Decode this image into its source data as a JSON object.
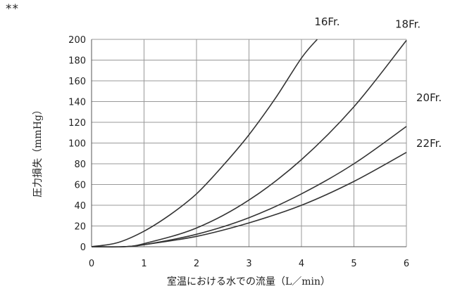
{
  "page": {
    "marker": "**"
  },
  "chart_data": {
    "type": "line",
    "title": "",
    "xlabel": "室温における水での流量（L／min）",
    "ylabel": "圧力損失（mmHg）",
    "xlim": [
      0,
      6
    ],
    "ylim": [
      0,
      200
    ],
    "x_ticks": [
      "0",
      "1",
      "2",
      "3",
      "4",
      "5",
      "6"
    ],
    "y_ticks": [
      "0",
      "20",
      "40",
      "60",
      "80",
      "100",
      "120",
      "140",
      "160",
      "180",
      "200"
    ],
    "grid": "vertical and horizontal",
    "series": [
      {
        "name": "16Fr.",
        "x": [
          0,
          0.5,
          1,
          1.5,
          2,
          2.5,
          3,
          3.5,
          4,
          4.3
        ],
        "y": [
          0,
          4,
          15,
          31,
          51,
          78,
          108,
          143,
          182,
          200
        ]
      },
      {
        "name": "18Fr.",
        "x": [
          0,
          0.6,
          1,
          2,
          3,
          4,
          5,
          6
        ],
        "y": [
          0,
          0,
          3,
          18,
          45,
          84,
          135,
          199
        ]
      },
      {
        "name": "20Fr.",
        "x": [
          0,
          0.6,
          1,
          2,
          3,
          4,
          5,
          6
        ],
        "y": [
          0,
          0,
          2,
          12,
          28,
          51,
          80,
          116
        ]
      },
      {
        "name": "22Fr.",
        "x": [
          0,
          0.6,
          1,
          2,
          3,
          4,
          5,
          6
        ],
        "y": [
          0,
          0,
          2,
          10,
          23,
          40,
          63,
          91
        ]
      }
    ]
  }
}
